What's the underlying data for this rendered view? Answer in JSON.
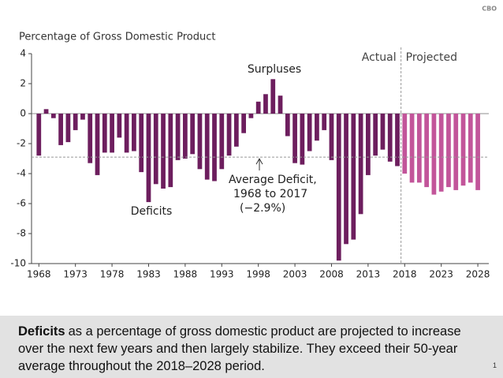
{
  "chart_data": {
    "type": "bar",
    "source": "CBO",
    "y_label": "Percentage of Gross Domestic Product",
    "xlim": [
      1967,
      2029.5
    ],
    "xticks": [
      1968,
      1973,
      1978,
      1983,
      1988,
      1993,
      1998,
      2003,
      2008,
      2013,
      2018,
      2023,
      2028
    ],
    "ylim": [
      -10,
      4
    ],
    "yticks": [
      -10,
      -8,
      -6,
      -4,
      -2,
      0,
      2,
      4
    ],
    "series": [
      {
        "name": "Actual",
        "color": "#6d1e5e",
        "x": [
          1968,
          1969,
          1970,
          1971,
          1972,
          1973,
          1974,
          1975,
          1976,
          1977,
          1978,
          1979,
          1980,
          1981,
          1982,
          1983,
          1984,
          1985,
          1986,
          1987,
          1988,
          1989,
          1990,
          1991,
          1992,
          1993,
          1994,
          1995,
          1996,
          1997,
          1998,
          1999,
          2000,
          2001,
          2002,
          2003,
          2004,
          2005,
          2006,
          2007,
          2008,
          2009,
          2010,
          2011,
          2012,
          2013,
          2014,
          2015,
          2016,
          2017
        ],
        "values": [
          -2.8,
          0.3,
          -0.3,
          -2.1,
          -1.9,
          -1.1,
          -0.4,
          -3.3,
          -4.1,
          -2.6,
          -2.6,
          -1.6,
          -2.6,
          -2.5,
          -3.9,
          -5.9,
          -4.7,
          -5.0,
          -4.9,
          -3.1,
          -3.0,
          -2.7,
          -3.7,
          -4.4,
          -4.5,
          -3.7,
          -2.8,
          -2.2,
          -1.3,
          -0.3,
          0.8,
          1.3,
          2.3,
          1.2,
          -1.5,
          -3.3,
          -3.4,
          -2.5,
          -1.8,
          -1.1,
          -3.1,
          -9.8,
          -8.7,
          -8.4,
          -6.7,
          -4.1,
          -2.8,
          -2.4,
          -3.2,
          -3.5
        ]
      },
      {
        "name": "Projected",
        "color": "#c2559a",
        "x": [
          2018,
          2019,
          2020,
          2021,
          2022,
          2023,
          2024,
          2025,
          2026,
          2027,
          2028
        ],
        "values": [
          -4.0,
          -4.6,
          -4.6,
          -4.9,
          -5.4,
          -5.2,
          -4.9,
          -5.1,
          -4.8,
          -4.6,
          -5.1
        ]
      }
    ],
    "average": -2.9,
    "annotations": {
      "surpluses": "Surpluses",
      "deficits": "Deficits",
      "average": [
        "Average Deficit,",
        "1968 to 2017",
        "(−2.9%)"
      ]
    },
    "caption": {
      "bold": "Deficits",
      "text": "as a percentage of gross domestic product are projected to increase over the next few years and then largely stabilize. They exceed their 50-year average throughout the 2018–2028 period."
    },
    "page_number": "1"
  }
}
